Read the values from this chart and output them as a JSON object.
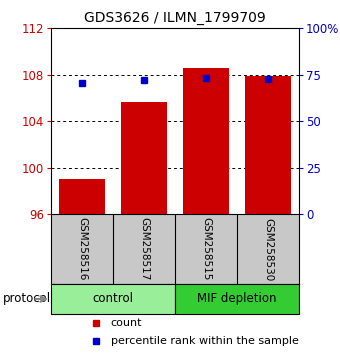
{
  "title": "GDS3626 / ILMN_1799709",
  "samples": [
    "GSM258516",
    "GSM258517",
    "GSM258515",
    "GSM258530"
  ],
  "counts": [
    99.0,
    105.7,
    108.6,
    107.9
  ],
  "percentile_ranks": [
    70.5,
    72.0,
    73.5,
    72.5
  ],
  "bar_base": 96,
  "ylim_left": [
    96,
    112
  ],
  "ylim_right": [
    0,
    100
  ],
  "yticks_left": [
    96,
    100,
    104,
    108,
    112
  ],
  "yticks_right": [
    0,
    25,
    50,
    75,
    100
  ],
  "ytick_labels_left": [
    "96",
    "100",
    "104",
    "108",
    "112"
  ],
  "ytick_labels_right": [
    "0",
    "25",
    "50",
    "75",
    "100%"
  ],
  "bar_color": "#cc0000",
  "dot_color": "#0000cc",
  "groups": [
    {
      "label": "control",
      "indices": [
        0,
        1
      ],
      "color": "#99ee99"
    },
    {
      "label": "MIF depletion",
      "indices": [
        2,
        3
      ],
      "color": "#33cc33"
    }
  ],
  "protocol_label": "protocol",
  "legend_count_label": "count",
  "legend_percentile_label": "percentile rank within the sample",
  "bar_width": 0.75,
  "background_color": "#ffffff",
  "plot_bg_color": "#ffffff",
  "tick_area_bg": "#c8c8c8",
  "grid_color": "#000000",
  "title_fontsize": 10
}
